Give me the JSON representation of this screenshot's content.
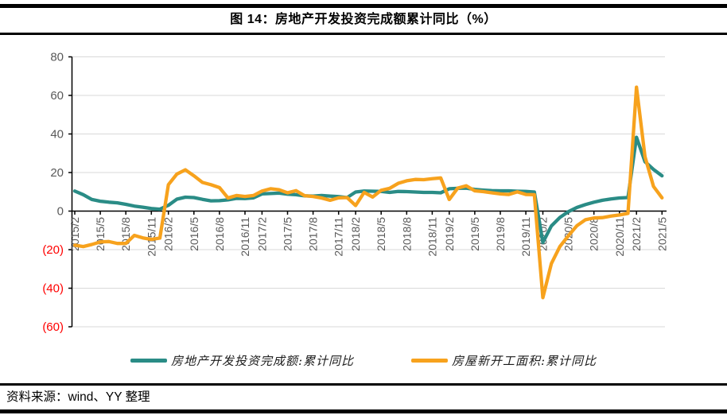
{
  "header": {
    "title": "图 14：房地产开发投资完成额累计同比（%）"
  },
  "footer": {
    "source": "资料来源：wind、YY 整理"
  },
  "chart_data": {
    "type": "line",
    "title": "图 14：房地产开发投资完成额累计同比（%）",
    "xlabel": "",
    "ylabel": "",
    "ylim": [
      -60,
      80
    ],
    "grid": true,
    "grid_color": "#D9D9D9",
    "axis_color": "#000000",
    "axis_label_color": "#595959",
    "negative_label_color": "#FF0000",
    "legend_position": "bottom",
    "y_ticks": [
      {
        "v": 80,
        "label": "80"
      },
      {
        "v": 60,
        "label": "60"
      },
      {
        "v": 40,
        "label": "40"
      },
      {
        "v": 20,
        "label": "20"
      },
      {
        "v": 0,
        "label": "0"
      },
      {
        "v": -20,
        "label": "(20)"
      },
      {
        "v": -40,
        "label": "(40)"
      },
      {
        "v": -60,
        "label": "(60)"
      }
    ],
    "x": [
      "2015/2",
      "2015/3",
      "2015/4",
      "2015/5",
      "2015/6",
      "2015/7",
      "2015/8",
      "2015/9",
      "2015/10",
      "2015/11",
      "2015/12",
      "2016/2",
      "2016/3",
      "2016/4",
      "2016/5",
      "2016/6",
      "2016/7",
      "2016/8",
      "2016/9",
      "2016/10",
      "2016/11",
      "2016/12",
      "2017/2",
      "2017/3",
      "2017/4",
      "2017/5",
      "2017/6",
      "2017/7",
      "2017/8",
      "2017/9",
      "2017/10",
      "2017/11",
      "2017/12",
      "2018/2",
      "2018/3",
      "2018/4",
      "2018/5",
      "2018/6",
      "2018/7",
      "2018/8",
      "2018/9",
      "2018/10",
      "2018/11",
      "2018/12",
      "2019/2",
      "2019/3",
      "2019/4",
      "2019/5",
      "2019/6",
      "2019/7",
      "2019/8",
      "2019/9",
      "2019/10",
      "2019/11",
      "2019/12",
      "2020/2",
      "2020/3",
      "2020/4",
      "2020/5",
      "2020/6",
      "2020/7",
      "2020/8",
      "2020/9",
      "2020/10",
      "2020/11",
      "2020/12",
      "2021/2",
      "2021/3",
      "2021/4",
      "2021/5"
    ],
    "x_tick_labels": [
      "2015/2",
      "2015/5",
      "2015/8",
      "2015/11",
      "2016/2",
      "2016/5",
      "2016/8",
      "2016/11",
      "2017/2",
      "2017/5",
      "2017/8",
      "2017/11",
      "2018/2",
      "2018/5",
      "2018/8",
      "2018/11",
      "2019/2",
      "2019/5",
      "2019/8",
      "2019/11",
      "2020/2",
      "2020/5",
      "2020/8",
      "2020/11",
      "2021/2",
      "2021/5"
    ],
    "series": [
      {
        "name": "房地产开发投资完成额:累计同比",
        "color": "#2A8C86",
        "values": [
          10.4,
          8.5,
          6.0,
          5.1,
          4.6,
          4.3,
          3.5,
          2.6,
          2.0,
          1.3,
          1.0,
          3.0,
          6.2,
          7.2,
          7.0,
          6.1,
          5.3,
          5.4,
          5.8,
          6.6,
          6.5,
          6.9,
          8.9,
          9.1,
          9.3,
          8.8,
          8.5,
          7.9,
          7.8,
          8.1,
          7.8,
          7.5,
          7.0,
          9.9,
          10.4,
          10.3,
          10.2,
          9.7,
          10.2,
          10.1,
          9.9,
          9.7,
          9.7,
          9.5,
          11.6,
          11.8,
          11.9,
          11.2,
          10.9,
          10.6,
          10.5,
          10.5,
          10.3,
          10.2,
          9.9,
          -16.3,
          -7.7,
          -3.3,
          -0.3,
          1.9,
          3.4,
          4.6,
          5.6,
          6.3,
          6.8,
          7.0,
          38.3,
          25.6,
          21.6,
          18.3
        ]
      },
      {
        "name": "房屋新开工面积:累计同比",
        "color": "#F7A21D",
        "values": [
          -17.7,
          -18.4,
          -17.3,
          -16.0,
          -15.8,
          -16.8,
          -16.8,
          -12.6,
          -13.9,
          -14.7,
          -14.0,
          13.7,
          19.2,
          21.4,
          18.3,
          14.9,
          13.7,
          12.2,
          6.8,
          8.1,
          7.6,
          8.1,
          10.4,
          11.6,
          11.1,
          9.5,
          10.6,
          8.0,
          7.6,
          6.8,
          5.6,
          6.9,
          7.0,
          2.9,
          9.7,
          7.3,
          10.8,
          11.8,
          14.4,
          15.7,
          16.4,
          16.3,
          16.8,
          17.2,
          6.0,
          11.9,
          13.1,
          10.5,
          10.1,
          9.5,
          8.9,
          8.6,
          10.0,
          8.6,
          8.5,
          -44.9,
          -27.2,
          -18.4,
          -12.8,
          -7.6,
          -4.5,
          -3.6,
          -3.4,
          -2.6,
          -2.0,
          -1.2,
          64.3,
          28.2,
          12.8,
          6.9
        ]
      }
    ]
  }
}
